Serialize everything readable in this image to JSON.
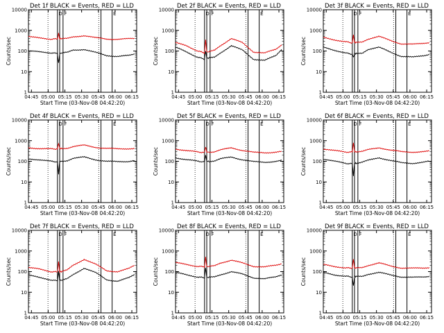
{
  "figure": {
    "shared": {
      "x_axis_title": "Start Time (03-Nov-08 04:42:20)",
      "y_axis_title": "Counts/sec",
      "x_tick_labels": [
        "04:45",
        "05:00",
        "05:15",
        "05:30",
        "05:45",
        "06:00",
        "06:15"
      ],
      "y_tick_labels": [
        "1",
        "10",
        "100",
        "1000",
        "10000"
      ],
      "colors": {
        "events": "#000000",
        "lld": "#dd0000"
      }
    }
  },
  "chart_data": [
    {
      "type": "line",
      "title": "Det 1f BLACK = Events, RED = LLD",
      "x_minutes": [
        0,
        10,
        20,
        26,
        27,
        28,
        30,
        35,
        40,
        50,
        60,
        70,
        80,
        90,
        95
      ],
      "ylim": [
        1,
        10000
      ],
      "yscale": "log",
      "series": [
        {
          "name": "Events",
          "color": "#000000",
          "values": [
            100,
            90,
            82,
            75,
            25,
            75,
            80,
            85,
            110,
            120,
            85,
            60,
            55,
            60,
            70
          ]
        },
        {
          "name": "LLD",
          "color": "#dd0000",
          "values": [
            500,
            420,
            380,
            380,
            700,
            400,
            390,
            400,
            480,
            560,
            440,
            380,
            370,
            390,
            400
          ]
        }
      ],
      "vertical_lines": [
        {
          "minute": 26,
          "label": "D"
        },
        {
          "minute": 28,
          "label": ""
        },
        {
          "minute": 31,
          "label": "F"
        },
        {
          "minute": 65,
          "label": ""
        },
        {
          "minute": 75,
          "label": "E"
        }
      ],
      "dotted_lines_minutes": [
        17.5,
        63
      ]
    },
    {
      "type": "line",
      "title": "Det 2f BLACK = Events, RED = LLD",
      "x_minutes": [
        0,
        10,
        20,
        26,
        27,
        28,
        30,
        35,
        40,
        50,
        60,
        70,
        80,
        90,
        95
      ],
      "ylim": [
        1,
        10000
      ],
      "yscale": "log",
      "series": [
        {
          "name": "Events",
          "color": "#000000",
          "values": [
            150,
            90,
            50,
            40,
            100,
            45,
            45,
            50,
            80,
            180,
            110,
            40,
            35,
            60,
            120
          ]
        },
        {
          "name": "LLD",
          "color": "#dd0000",
          "values": [
            250,
            180,
            100,
            80,
            350,
            90,
            90,
            110,
            180,
            400,
            250,
            90,
            80,
            120,
            200
          ]
        }
      ],
      "vertical_lines": [
        {
          "minute": 26,
          "label": "D"
        },
        {
          "minute": 28,
          "label": ""
        },
        {
          "minute": 31,
          "label": "F"
        },
        {
          "minute": 65,
          "label": ""
        },
        {
          "minute": 75,
          "label": "E"
        }
      ],
      "dotted_lines_minutes": [
        17.5,
        63
      ]
    },
    {
      "type": "line",
      "title": "Det 3f BLACK = Events, RED = LLD",
      "x_minutes": [
        0,
        10,
        20,
        26,
        27,
        28,
        30,
        35,
        40,
        50,
        60,
        70,
        80,
        90,
        95
      ],
      "ylim": [
        1,
        10000
      ],
      "yscale": "log",
      "series": [
        {
          "name": "Events",
          "color": "#000000",
          "values": [
            150,
            110,
            80,
            70,
            50,
            75,
            75,
            80,
            120,
            150,
            90,
            55,
            50,
            60,
            70
          ]
        },
        {
          "name": "LLD",
          "color": "#dd0000",
          "values": [
            450,
            350,
            280,
            250,
            600,
            260,
            260,
            280,
            380,
            500,
            330,
            220,
            210,
            240,
            260
          ]
        }
      ],
      "vertical_lines": [
        {
          "minute": 26,
          "label": "D"
        },
        {
          "minute": 28,
          "label": ""
        },
        {
          "minute": 31,
          "label": "F"
        },
        {
          "minute": 65,
          "label": ""
        },
        {
          "minute": 75,
          "label": "E"
        }
      ],
      "dotted_lines_minutes": [
        17.5,
        63
      ]
    },
    {
      "type": "line",
      "title": "Det 4f BLACK = Events, RED = LLD",
      "x_minutes": [
        0,
        10,
        20,
        26,
        27,
        28,
        30,
        35,
        40,
        50,
        60,
        70,
        80,
        90,
        95
      ],
      "ylim": [
        1,
        10000
      ],
      "yscale": "log",
      "series": [
        {
          "name": "Events",
          "color": "#000000",
          "values": [
            130,
            120,
            100,
            95,
            25,
            100,
            100,
            110,
            140,
            160,
            120,
            100,
            95,
            100,
            110
          ]
        },
        {
          "name": "LLD",
          "color": "#dd0000",
          "values": [
            450,
            420,
            400,
            400,
            750,
            420,
            420,
            440,
            520,
            600,
            480,
            420,
            400,
            410,
            420
          ]
        }
      ],
      "vertical_lines": [
        {
          "minute": 26,
          "label": "D"
        },
        {
          "minute": 28,
          "label": ""
        },
        {
          "minute": 31,
          "label": "F"
        },
        {
          "minute": 65,
          "label": ""
        },
        {
          "minute": 75,
          "label": "E"
        }
      ],
      "dotted_lines_minutes": [
        17.5,
        63
      ]
    },
    {
      "type": "line",
      "title": "Det 5f BLACK = Events, RED = LLD",
      "x_minutes": [
        0,
        10,
        20,
        26,
        27,
        28,
        30,
        35,
        40,
        50,
        60,
        70,
        80,
        90,
        95
      ],
      "ylim": [
        1,
        10000
      ],
      "yscale": "log",
      "series": [
        {
          "name": "Events",
          "color": "#000000",
          "values": [
            150,
            120,
            100,
            95,
            200,
            100,
            100,
            105,
            130,
            160,
            120,
            95,
            90,
            100,
            110
          ]
        },
        {
          "name": "LLD",
          "color": "#dd0000",
          "values": [
            400,
            330,
            280,
            270,
            500,
            280,
            280,
            290,
            350,
            450,
            340,
            270,
            260,
            280,
            300
          ]
        }
      ],
      "vertical_lines": [
        {
          "minute": 26,
          "label": "D"
        },
        {
          "minute": 28,
          "label": ""
        },
        {
          "minute": 31,
          "label": "F"
        },
        {
          "minute": 65,
          "label": ""
        },
        {
          "minute": 75,
          "label": "E"
        }
      ],
      "dotted_lines_minutes": [
        17.5,
        63
      ]
    },
    {
      "type": "line",
      "title": "Det 6f BLACK = Events, RED = LLD",
      "x_minutes": [
        0,
        10,
        20,
        26,
        27,
        28,
        30,
        35,
        40,
        50,
        60,
        70,
        80,
        90,
        95
      ],
      "ylim": [
        1,
        10000
      ],
      "yscale": "log",
      "series": [
        {
          "name": "Events",
          "color": "#000000",
          "values": [
            130,
            100,
            80,
            75,
            20,
            80,
            80,
            90,
            110,
            150,
            110,
            85,
            80,
            90,
            100
          ]
        },
        {
          "name": "LLD",
          "color": "#dd0000",
          "values": [
            400,
            330,
            280,
            280,
            800,
            290,
            290,
            300,
            360,
            460,
            350,
            290,
            280,
            290,
            310
          ]
        }
      ],
      "vertical_lines": [
        {
          "minute": 26,
          "label": "D"
        },
        {
          "minute": 28,
          "label": ""
        },
        {
          "minute": 31,
          "label": "F"
        },
        {
          "minute": 65,
          "label": ""
        },
        {
          "minute": 75,
          "label": "E"
        }
      ],
      "dotted_lines_minutes": [
        17.5,
        63
      ]
    },
    {
      "type": "line",
      "title": "Det 7f BLACK = Events, RED = LLD",
      "x_minutes": [
        0,
        10,
        20,
        26,
        27,
        28,
        30,
        35,
        40,
        50,
        60,
        70,
        80,
        90,
        95
      ],
      "ylim": [
        1,
        10000
      ],
      "yscale": "log",
      "series": [
        {
          "name": "Events",
          "color": "#000000",
          "values": [
            70,
            50,
            40,
            35,
            100,
            38,
            38,
            45,
            70,
            150,
            90,
            40,
            35,
            50,
            70
          ]
        },
        {
          "name": "LLD",
          "color": "#dd0000",
          "values": [
            160,
            130,
            100,
            95,
            300,
            100,
            100,
            120,
            200,
            400,
            230,
            110,
            100,
            140,
            200
          ]
        }
      ],
      "vertical_lines": [
        {
          "minute": 26,
          "label": "D"
        },
        {
          "minute": 28,
          "label": ""
        },
        {
          "minute": 31,
          "label": "F"
        },
        {
          "minute": 65,
          "label": ""
        },
        {
          "minute": 75,
          "label": "E"
        }
      ],
      "dotted_lines_minutes": [
        17.5,
        63
      ]
    },
    {
      "type": "line",
      "title": "Det 8f BLACK = Events, RED = LLD",
      "x_minutes": [
        0,
        10,
        20,
        26,
        27,
        28,
        30,
        35,
        40,
        50,
        60,
        70,
        80,
        90,
        95
      ],
      "ylim": [
        1,
        10000
      ],
      "yscale": "log",
      "series": [
        {
          "name": "Events",
          "color": "#000000",
          "values": [
            90,
            70,
            55,
            50,
            150,
            52,
            52,
            55,
            70,
            100,
            75,
            50,
            45,
            55,
            70
          ]
        },
        {
          "name": "LLD",
          "color": "#dd0000",
          "values": [
            270,
            220,
            180,
            170,
            500,
            175,
            175,
            190,
            260,
            360,
            260,
            180,
            170,
            200,
            240
          ]
        }
      ],
      "vertical_lines": [
        {
          "minute": 26,
          "label": "D"
        },
        {
          "minute": 28,
          "label": ""
        },
        {
          "minute": 31,
          "label": "F"
        },
        {
          "minute": 65,
          "label": ""
        },
        {
          "minute": 75,
          "label": "E"
        }
      ],
      "dotted_lines_minutes": [
        17.5,
        63
      ]
    },
    {
      "type": "line",
      "title": "Det 9f BLACK = Events, RED = LLD",
      "x_minutes": [
        0,
        10,
        20,
        26,
        27,
        28,
        30,
        35,
        40,
        50,
        60,
        70,
        80,
        90,
        95
      ],
      "ylim": [
        1,
        10000
      ],
      "yscale": "log",
      "series": [
        {
          "name": "Events",
          "color": "#000000",
          "values": [
            90,
            70,
            60,
            55,
            20,
            58,
            58,
            60,
            75,
            90,
            70,
            55,
            52,
            56,
            60
          ]
        },
        {
          "name": "LLD",
          "color": "#dd0000",
          "values": [
            220,
            180,
            150,
            150,
            400,
            150,
            150,
            160,
            200,
            260,
            190,
            150,
            145,
            150,
            160
          ]
        }
      ],
      "vertical_lines": [
        {
          "minute": 26,
          "label": "D"
        },
        {
          "minute": 28,
          "label": ""
        },
        {
          "minute": 31,
          "label": "F"
        },
        {
          "minute": 65,
          "label": ""
        },
        {
          "minute": 75,
          "label": "E"
        }
      ],
      "dotted_lines_minutes": [
        17.5,
        63
      ]
    }
  ]
}
